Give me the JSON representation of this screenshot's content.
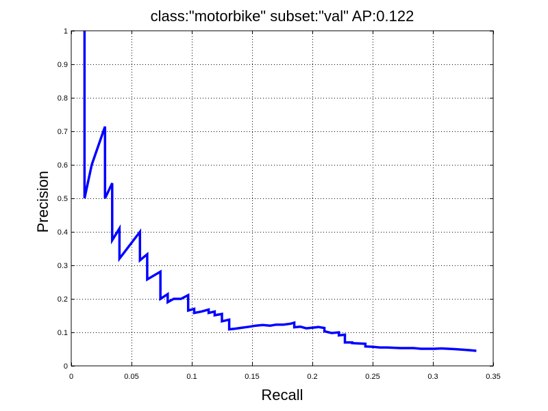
{
  "chart_data": {
    "type": "line",
    "title": "class:\"motorbike\" subset:\"val\" AP:0.122",
    "xlabel": "Recall",
    "ylabel": "Precision",
    "xlim": [
      0,
      0.35
    ],
    "ylim": [
      0,
      1
    ],
    "grid": true,
    "x_ticks": [
      "0",
      "0.05",
      "0.1",
      "0.15",
      "0.2",
      "0.25",
      "0.3",
      "0.35"
    ],
    "y_ticks": [
      "0",
      "0.1",
      "0.2",
      "0.3",
      "0.4",
      "0.5",
      "0.6",
      "0.7",
      "0.8",
      "0.9",
      "1"
    ],
    "x_tick_values": [
      0,
      0.05,
      0.1,
      0.15,
      0.2,
      0.25,
      0.3,
      0.35
    ],
    "y_tick_values": [
      0,
      0.1,
      0.2,
      0.3,
      0.4,
      0.5,
      0.6,
      0.7,
      0.8,
      0.9,
      1
    ],
    "series": [
      {
        "color": "#0000ff",
        "x": [
          0.011,
          0.011,
          0.011,
          0.017,
          0.028,
          0.028,
          0.034,
          0.034,
          0.04,
          0.04,
          0.057,
          0.057,
          0.063,
          0.063,
          0.074,
          0.074,
          0.08,
          0.08,
          0.085,
          0.091,
          0.097,
          0.097,
          0.102,
          0.102,
          0.108,
          0.114,
          0.114,
          0.119,
          0.119,
          0.125,
          0.125,
          0.131,
          0.131,
          0.136,
          0.136,
          0.142,
          0.148,
          0.153,
          0.159,
          0.165,
          0.17,
          0.176,
          0.182,
          0.185,
          0.185,
          0.19,
          0.195,
          0.205,
          0.21,
          0.21,
          0.216,
          0.222,
          0.222,
          0.227,
          0.227,
          0.233,
          0.233,
          0.239,
          0.244,
          0.244,
          0.25,
          0.256,
          0.262,
          0.273,
          0.284,
          0.29,
          0.301,
          0.307,
          0.318,
          0.33,
          0.336
        ],
        "y": [
          1.0,
          0.5,
          0.5,
          0.6,
          0.714,
          0.5,
          0.545,
          0.375,
          0.41,
          0.32,
          0.4,
          0.315,
          0.333,
          0.258,
          0.281,
          0.2,
          0.214,
          0.19,
          0.2,
          0.2,
          0.211,
          0.165,
          0.17,
          0.158,
          0.162,
          0.168,
          0.158,
          0.162,
          0.151,
          0.155,
          0.133,
          0.138,
          0.109,
          0.111,
          0.111,
          0.114,
          0.117,
          0.12,
          0.122,
          0.12,
          0.123,
          0.123,
          0.126,
          0.129,
          0.115,
          0.117,
          0.112,
          0.116,
          0.113,
          0.103,
          0.098,
          0.1,
          0.091,
          0.093,
          0.07,
          0.07,
          0.068,
          0.067,
          0.066,
          0.058,
          0.057,
          0.055,
          0.055,
          0.053,
          0.053,
          0.051,
          0.051,
          0.052,
          0.05,
          0.047,
          0.045
        ]
      }
    ]
  }
}
